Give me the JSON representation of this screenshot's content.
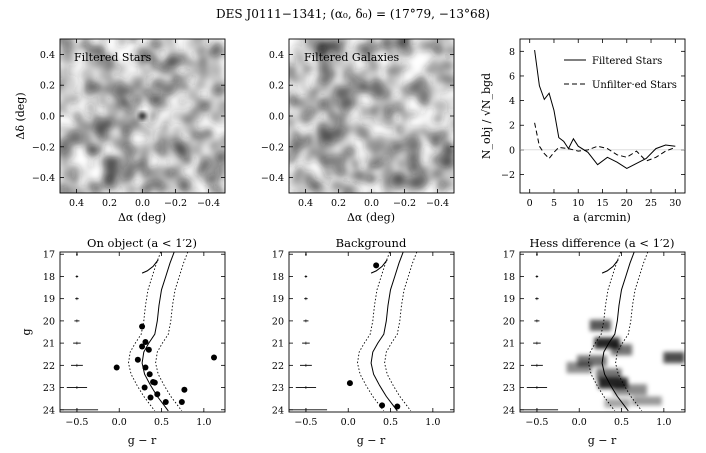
{
  "figure": {
    "title": "DES J0111−1341; (α₀, δ₀) = (17°79, −13°68)"
  },
  "colors": {
    "ink": "#000000",
    "density": "#1e1e1e",
    "background": "#ffffff"
  },
  "chart_data": [
    {
      "id": "map-stars",
      "type": "heatmap",
      "inset_label": "Filtered Stars",
      "xlabel": "Δα (deg)",
      "ylabel": "Δδ (deg)",
      "xlim": [
        0.5,
        -0.5
      ],
      "ylim": [
        -0.5,
        0.5
      ],
      "xticks": [
        0.4,
        0.2,
        0.0,
        -0.2,
        -0.4
      ],
      "xtick_labels": [
        "0.4",
        "0.2",
        "0.0",
        "−0.2",
        "−0.4"
      ],
      "yticks": [
        0.4,
        0.2,
        0.0,
        -0.2,
        -0.4
      ],
      "ytick_labels": [
        "0.4",
        "0.2",
        "0.0",
        "−0.2",
        "−0.4"
      ],
      "seed": 7,
      "peak": [
        0.0,
        0.0
      ]
    },
    {
      "id": "map-galaxies",
      "type": "heatmap",
      "inset_label": "Filtered Galaxies",
      "xlabel": "Δα (deg)",
      "xlim": [
        0.5,
        -0.5
      ],
      "ylim": [
        -0.5,
        0.5
      ],
      "xticks": [
        0.4,
        0.2,
        0.0,
        -0.2,
        -0.4
      ],
      "xtick_labels": [
        "0.4",
        "0.2",
        "0.0",
        "−0.2",
        "−0.4"
      ],
      "yticks": [
        0.4,
        0.2,
        0.0,
        -0.2,
        -0.4
      ],
      "ytick_labels": [
        "0.4",
        "0.2",
        "0.0",
        "−0.2",
        "−0.4"
      ],
      "seed": 31,
      "peak": null
    },
    {
      "id": "profile",
      "type": "line",
      "xlabel": "a (arcmin)",
      "ylabel": "N_obj / √N_bgd",
      "xlim": [
        -2,
        32
      ],
      "ylim": [
        -3.5,
        9
      ],
      "xticks": [
        0,
        5,
        10,
        15,
        20,
        25,
        30
      ],
      "xtick_labels": [
        "0",
        "5",
        "10",
        "15",
        "20",
        "25",
        "30"
      ],
      "yticks": [
        -2,
        0,
        2,
        4,
        6,
        8
      ],
      "ytick_labels": [
        "−2",
        "0",
        "2",
        "4",
        "6",
        "8"
      ],
      "legend_position": "top-right",
      "series": [
        {
          "name": "Filtered Stars",
          "style": "solid",
          "x": [
            1,
            2,
            3,
            4,
            5,
            6,
            7,
            8,
            9,
            10,
            12,
            14,
            16,
            18,
            20,
            22,
            24,
            26,
            28,
            30
          ],
          "y": [
            8.1,
            5.2,
            4.1,
            4.6,
            3.2,
            1.0,
            0.7,
            0.1,
            0.9,
            0.3,
            -0.2,
            -1.2,
            -0.6,
            -1.0,
            -1.5,
            -1.1,
            -0.7,
            0.1,
            0.4,
            0.3
          ]
        },
        {
          "name": "Unfilter·ed Stars",
          "style": "dashed",
          "x": [
            1,
            2,
            3,
            4,
            5,
            6,
            8,
            10,
            12,
            14,
            16,
            18,
            20,
            22,
            24,
            26,
            28,
            30
          ],
          "y": [
            2.2,
            0.3,
            -0.3,
            -0.7,
            -0.2,
            0.2,
            0.1,
            -0.1,
            0.0,
            0.3,
            0.1,
            -0.4,
            -0.6,
            -0.1,
            -0.9,
            -0.6,
            -0.1,
            0.2
          ]
        }
      ]
    },
    {
      "id": "cmd-object",
      "type": "scatter",
      "title": "On object (a < 1′2)",
      "xlabel": "g − r",
      "ylabel": "g",
      "xlim": [
        -0.7,
        1.25
      ],
      "ylim": [
        24.1,
        16.9
      ],
      "xticks": [
        -0.5,
        0.0,
        0.5,
        1.0
      ],
      "xtick_labels": [
        "−0.5",
        "0.0",
        "0.5",
        "1.0"
      ],
      "yticks": [
        17,
        18,
        19,
        20,
        21,
        22,
        23,
        24
      ],
      "ytick_labels": [
        "17",
        "18",
        "19",
        "20",
        "21",
        "22",
        "23",
        "24"
      ],
      "points": [
        {
          "x": 0.27,
          "y": 20.25
        },
        {
          "x": 0.27,
          "y": 21.15
        },
        {
          "x": 0.31,
          "y": 20.95
        },
        {
          "x": 0.35,
          "y": 21.3
        },
        {
          "x": 0.22,
          "y": 21.75
        },
        {
          "x": 0.31,
          "y": 22.1
        },
        {
          "x": 0.36,
          "y": 22.4
        },
        {
          "x": 0.4,
          "y": 22.75
        },
        {
          "x": 0.42,
          "y": 22.78
        },
        {
          "x": 0.3,
          "y": 23.0
        },
        {
          "x": 0.45,
          "y": 23.3
        },
        {
          "x": 0.37,
          "y": 23.45
        },
        {
          "x": 0.55,
          "y": 23.65
        },
        {
          "x": 0.77,
          "y": 23.1
        },
        {
          "x": 0.74,
          "y": 23.65
        },
        {
          "x": 1.12,
          "y": 21.65
        },
        {
          "x": -0.03,
          "y": 22.1
        }
      ],
      "heat": [],
      "show_isochrone": true
    },
    {
      "id": "cmd-background",
      "type": "scatter",
      "title": "Background",
      "xlabel": "g − r",
      "xlim": [
        -0.7,
        1.25
      ],
      "ylim": [
        24.1,
        16.9
      ],
      "xticks": [
        -0.5,
        0.0,
        0.5,
        1.0
      ],
      "xtick_labels": [
        "−0.5",
        "0.0",
        "0.5",
        "1.0"
      ],
      "yticks": [
        17,
        18,
        19,
        20,
        21,
        22,
        23,
        24
      ],
      "ytick_labels": [
        "17",
        "18",
        "19",
        "20",
        "21",
        "22",
        "23",
        "24"
      ],
      "points": [
        {
          "x": 0.33,
          "y": 17.5
        },
        {
          "x": 0.02,
          "y": 22.8
        },
        {
          "x": 0.4,
          "y": 23.8
        },
        {
          "x": 0.58,
          "y": 23.85
        }
      ],
      "heat": [],
      "show_isochrone": true
    },
    {
      "id": "cmd-hess",
      "type": "heatmap",
      "title": "Hess difference (a < 1′2)",
      "xlabel": "g − r",
      "xlim": [
        -0.7,
        1.25
      ],
      "ylim": [
        24.1,
        16.9
      ],
      "xticks": [
        -0.5,
        0.0,
        0.5,
        1.0
      ],
      "xtick_labels": [
        "−0.5",
        "0.0",
        "0.5",
        "1.0"
      ],
      "yticks": [
        17,
        18,
        19,
        20,
        21,
        22,
        23,
        24
      ],
      "ytick_labels": [
        "17",
        "18",
        "19",
        "20",
        "21",
        "22",
        "23",
        "24"
      ],
      "points": [],
      "heat": [
        {
          "x": 0.25,
          "y": 20.2,
          "w": 0.25,
          "h": 0.5,
          "v": 0.65
        },
        {
          "x": 0.33,
          "y": 21.0,
          "w": 0.3,
          "h": 0.5,
          "v": 0.85
        },
        {
          "x": 0.5,
          "y": 21.3,
          "w": 0.25,
          "h": 0.5,
          "v": 0.55
        },
        {
          "x": 0.15,
          "y": 21.8,
          "w": 0.35,
          "h": 0.5,
          "v": 0.55
        },
        {
          "x": 0.0,
          "y": 22.1,
          "w": 0.3,
          "h": 0.5,
          "v": 0.45
        },
        {
          "x": 0.35,
          "y": 22.4,
          "w": 0.3,
          "h": 0.5,
          "v": 0.55
        },
        {
          "x": 0.4,
          "y": 22.8,
          "w": 0.35,
          "h": 0.5,
          "v": 0.85
        },
        {
          "x": 0.6,
          "y": 23.1,
          "w": 0.4,
          "h": 0.5,
          "v": 0.45
        },
        {
          "x": 0.8,
          "y": 23.6,
          "w": 0.35,
          "h": 0.4,
          "v": 0.4
        },
        {
          "x": 0.45,
          "y": 23.7,
          "w": 0.3,
          "h": 0.4,
          "v": 0.35
        },
        {
          "x": 1.12,
          "y": 21.65,
          "w": 0.25,
          "h": 0.5,
          "v": 0.7
        }
      ],
      "show_isochrone": true
    }
  ],
  "isochrone": {
    "center": [
      {
        "x": 0.65,
        "y": 16.9
      },
      {
        "x": 0.6,
        "y": 17.4
      },
      {
        "x": 0.55,
        "y": 18.0
      },
      {
        "x": 0.5,
        "y": 18.6
      },
      {
        "x": 0.47,
        "y": 19.3
      },
      {
        "x": 0.45,
        "y": 20.0
      },
      {
        "x": 0.42,
        "y": 20.6
      },
      {
        "x": 0.35,
        "y": 21.0
      },
      {
        "x": 0.29,
        "y": 21.4
      },
      {
        "x": 0.27,
        "y": 21.9
      },
      {
        "x": 0.3,
        "y": 22.4
      },
      {
        "x": 0.37,
        "y": 22.9
      },
      {
        "x": 0.45,
        "y": 23.4
      },
      {
        "x": 0.53,
        "y": 23.8
      },
      {
        "x": 0.58,
        "y": 24.05
      }
    ],
    "offset": 0.16,
    "hb": [
      {
        "x": 0.27,
        "y": 17.85
      },
      {
        "x": 0.33,
        "y": 17.75
      },
      {
        "x": 0.4,
        "y": 17.55
      },
      {
        "x": 0.46,
        "y": 17.25
      }
    ],
    "error_bars": [
      {
        "g": 17.0,
        "e": 0.01
      },
      {
        "g": 18.0,
        "e": 0.015
      },
      {
        "g": 19.0,
        "e": 0.02
      },
      {
        "g": 20.0,
        "e": 0.03
      },
      {
        "g": 21.0,
        "e": 0.045
      },
      {
        "g": 22.0,
        "e": 0.07
      },
      {
        "g": 23.0,
        "e": 0.12
      },
      {
        "g": 24.0,
        "e": 0.25
      }
    ],
    "error_x": -0.5
  }
}
